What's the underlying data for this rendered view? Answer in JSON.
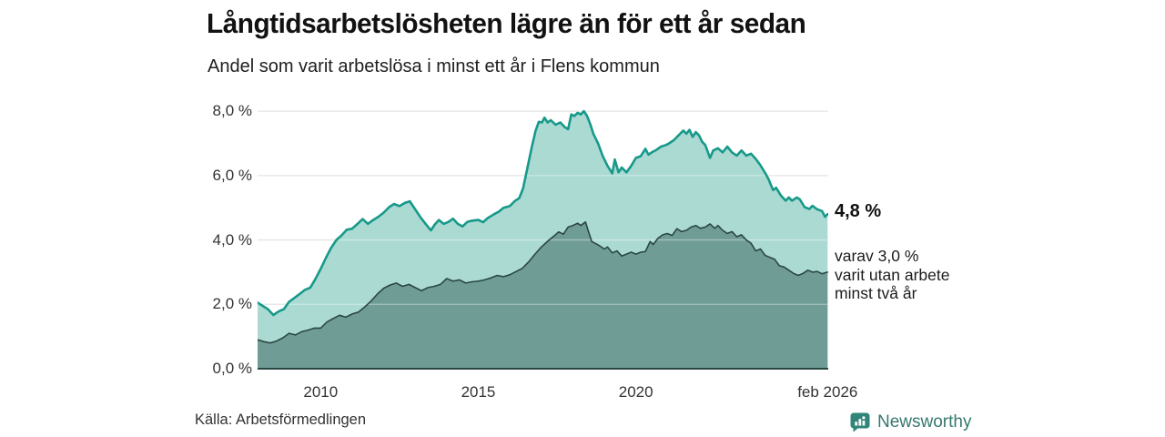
{
  "header": {
    "title": "Långtidsarbetslösheten lägre än för ett år sedan",
    "subtitle": "Andel som varit arbetslösa i minst ett år i Flens kommun"
  },
  "annotations": {
    "end_value": "4,8 %",
    "sub_lines": [
      "varav 3,0 %",
      "varit utan arbete",
      "minst två år"
    ]
  },
  "footer": {
    "source": "Källa: Arbetsförmedlingen",
    "brand": "Newsworthy",
    "brand_color": "#2e8578",
    "brand_text_color": "#37786e"
  },
  "chart_data": {
    "type": "area",
    "title": "Långtidsarbetslösheten lägre än för ett år sedan",
    "subtitle": "Andel som varit arbetslösa i minst ett år i Flens kommun",
    "grid": true,
    "gridline_color": "#d9d9d9",
    "gridline_overlay_color": "rgba(255,255,255,0.38)",
    "baseline_color": "#2b4742",
    "x_range": [
      2008.0,
      2026.1
    ],
    "y_range": [
      0,
      8
    ],
    "x_axis": {
      "ticks": [
        {
          "label": "2010",
          "value": 2010
        },
        {
          "label": "2015",
          "value": 2015
        },
        {
          "label": "2020",
          "value": 2020
        },
        {
          "label": "feb 2026",
          "value": 2026.08
        }
      ]
    },
    "y_axis": {
      "unit": "%",
      "ticks": [
        {
          "label": "0,0 %",
          "value": 0
        },
        {
          "label": "2,0 %",
          "value": 2
        },
        {
          "label": "4,0 %",
          "value": 4
        },
        {
          "label": "6,0 %",
          "value": 6
        },
        {
          "label": "8,0 %",
          "value": 8
        }
      ]
    },
    "series": [
      {
        "name": "arbetslösa minst ett år",
        "end_value": 4.8,
        "line_color": "#17998a",
        "fill_color": "#abdad3",
        "line_width": 2.6,
        "points": [
          [
            2008.0,
            2.05
          ],
          [
            2008.17,
            1.95
          ],
          [
            2008.33,
            1.85
          ],
          [
            2008.5,
            1.67
          ],
          [
            2008.67,
            1.78
          ],
          [
            2008.83,
            1.85
          ],
          [
            2009.0,
            2.08
          ],
          [
            2009.17,
            2.2
          ],
          [
            2009.33,
            2.32
          ],
          [
            2009.5,
            2.45
          ],
          [
            2009.67,
            2.52
          ],
          [
            2009.83,
            2.78
          ],
          [
            2010.0,
            3.1
          ],
          [
            2010.17,
            3.45
          ],
          [
            2010.33,
            3.75
          ],
          [
            2010.5,
            4.0
          ],
          [
            2010.67,
            4.15
          ],
          [
            2010.83,
            4.32
          ],
          [
            2011.0,
            4.35
          ],
          [
            2011.17,
            4.5
          ],
          [
            2011.33,
            4.65
          ],
          [
            2011.5,
            4.5
          ],
          [
            2011.67,
            4.62
          ],
          [
            2011.83,
            4.72
          ],
          [
            2012.0,
            4.85
          ],
          [
            2012.17,
            5.02
          ],
          [
            2012.33,
            5.12
          ],
          [
            2012.5,
            5.05
          ],
          [
            2012.67,
            5.15
          ],
          [
            2012.83,
            5.2
          ],
          [
            2013.0,
            4.95
          ],
          [
            2013.17,
            4.7
          ],
          [
            2013.33,
            4.5
          ],
          [
            2013.5,
            4.3
          ],
          [
            2013.62,
            4.48
          ],
          [
            2013.75,
            4.62
          ],
          [
            2013.9,
            4.5
          ],
          [
            2014.05,
            4.56
          ],
          [
            2014.2,
            4.66
          ],
          [
            2014.35,
            4.5
          ],
          [
            2014.5,
            4.42
          ],
          [
            2014.65,
            4.56
          ],
          [
            2014.8,
            4.6
          ],
          [
            2015.0,
            4.62
          ],
          [
            2015.15,
            4.55
          ],
          [
            2015.3,
            4.68
          ],
          [
            2015.5,
            4.8
          ],
          [
            2015.65,
            4.88
          ],
          [
            2015.8,
            5.0
          ],
          [
            2016.0,
            5.05
          ],
          [
            2016.15,
            5.2
          ],
          [
            2016.3,
            5.3
          ],
          [
            2016.42,
            5.6
          ],
          [
            2016.55,
            6.2
          ],
          [
            2016.7,
            6.9
          ],
          [
            2016.82,
            7.4
          ],
          [
            2016.92,
            7.67
          ],
          [
            2017.02,
            7.65
          ],
          [
            2017.1,
            7.8
          ],
          [
            2017.2,
            7.65
          ],
          [
            2017.3,
            7.72
          ],
          [
            2017.45,
            7.58
          ],
          [
            2017.6,
            7.65
          ],
          [
            2017.75,
            7.5
          ],
          [
            2017.85,
            7.44
          ],
          [
            2017.95,
            7.9
          ],
          [
            2018.05,
            7.85
          ],
          [
            2018.15,
            7.95
          ],
          [
            2018.25,
            7.9
          ],
          [
            2018.35,
            8.0
          ],
          [
            2018.45,
            7.85
          ],
          [
            2018.55,
            7.6
          ],
          [
            2018.65,
            7.3
          ],
          [
            2018.8,
            7.0
          ],
          [
            2018.95,
            6.6
          ],
          [
            2019.1,
            6.3
          ],
          [
            2019.25,
            6.07
          ],
          [
            2019.33,
            6.5
          ],
          [
            2019.45,
            6.1
          ],
          [
            2019.55,
            6.25
          ],
          [
            2019.7,
            6.1
          ],
          [
            2019.85,
            6.3
          ],
          [
            2020.0,
            6.55
          ],
          [
            2020.15,
            6.6
          ],
          [
            2020.3,
            6.83
          ],
          [
            2020.4,
            6.65
          ],
          [
            2020.5,
            6.72
          ],
          [
            2020.65,
            6.8
          ],
          [
            2020.8,
            6.9
          ],
          [
            2020.95,
            6.95
          ],
          [
            2021.05,
            7.0
          ],
          [
            2021.2,
            7.1
          ],
          [
            2021.35,
            7.25
          ],
          [
            2021.5,
            7.4
          ],
          [
            2021.6,
            7.3
          ],
          [
            2021.7,
            7.42
          ],
          [
            2021.8,
            7.2
          ],
          [
            2021.9,
            7.35
          ],
          [
            2022.0,
            7.25
          ],
          [
            2022.1,
            7.05
          ],
          [
            2022.2,
            6.95
          ],
          [
            2022.35,
            6.55
          ],
          [
            2022.45,
            6.78
          ],
          [
            2022.6,
            6.85
          ],
          [
            2022.75,
            6.72
          ],
          [
            2022.9,
            6.9
          ],
          [
            2023.05,
            6.72
          ],
          [
            2023.2,
            6.62
          ],
          [
            2023.35,
            6.78
          ],
          [
            2023.5,
            6.62
          ],
          [
            2023.65,
            6.68
          ],
          [
            2023.8,
            6.52
          ],
          [
            2023.95,
            6.32
          ],
          [
            2024.1,
            6.08
          ],
          [
            2024.2,
            5.9
          ],
          [
            2024.35,
            5.55
          ],
          [
            2024.45,
            5.62
          ],
          [
            2024.6,
            5.38
          ],
          [
            2024.75,
            5.22
          ],
          [
            2024.85,
            5.32
          ],
          [
            2024.95,
            5.22
          ],
          [
            2025.1,
            5.32
          ],
          [
            2025.2,
            5.26
          ],
          [
            2025.35,
            5.02
          ],
          [
            2025.5,
            4.96
          ],
          [
            2025.6,
            5.06
          ],
          [
            2025.75,
            4.95
          ],
          [
            2025.9,
            4.9
          ],
          [
            2026.0,
            4.72
          ],
          [
            2026.08,
            4.8
          ]
        ]
      },
      {
        "name": "varav utan arbete minst två år",
        "end_value": 3.0,
        "line_color": "#2b4742",
        "fill_color": "#6f9d96",
        "line_width": 1.6,
        "points": [
          [
            2008.0,
            0.9
          ],
          [
            2008.2,
            0.84
          ],
          [
            2008.4,
            0.8
          ],
          [
            2008.6,
            0.86
          ],
          [
            2008.8,
            0.96
          ],
          [
            2009.0,
            1.1
          ],
          [
            2009.2,
            1.05
          ],
          [
            2009.4,
            1.15
          ],
          [
            2009.6,
            1.2
          ],
          [
            2009.8,
            1.26
          ],
          [
            2010.0,
            1.26
          ],
          [
            2010.2,
            1.45
          ],
          [
            2010.4,
            1.56
          ],
          [
            2010.6,
            1.66
          ],
          [
            2010.8,
            1.6
          ],
          [
            2011.0,
            1.7
          ],
          [
            2011.2,
            1.76
          ],
          [
            2011.4,
            1.92
          ],
          [
            2011.6,
            2.1
          ],
          [
            2011.8,
            2.32
          ],
          [
            2012.0,
            2.5
          ],
          [
            2012.2,
            2.6
          ],
          [
            2012.4,
            2.66
          ],
          [
            2012.6,
            2.56
          ],
          [
            2012.8,
            2.62
          ],
          [
            2013.0,
            2.52
          ],
          [
            2013.2,
            2.42
          ],
          [
            2013.4,
            2.52
          ],
          [
            2013.6,
            2.56
          ],
          [
            2013.8,
            2.62
          ],
          [
            2014.0,
            2.8
          ],
          [
            2014.2,
            2.72
          ],
          [
            2014.4,
            2.76
          ],
          [
            2014.6,
            2.66
          ],
          [
            2014.8,
            2.7
          ],
          [
            2015.0,
            2.72
          ],
          [
            2015.2,
            2.76
          ],
          [
            2015.4,
            2.82
          ],
          [
            2015.6,
            2.9
          ],
          [
            2015.8,
            2.86
          ],
          [
            2016.0,
            2.92
          ],
          [
            2016.2,
            3.02
          ],
          [
            2016.4,
            3.12
          ],
          [
            2016.6,
            3.32
          ],
          [
            2016.8,
            3.56
          ],
          [
            2017.0,
            3.78
          ],
          [
            2017.2,
            3.96
          ],
          [
            2017.4,
            4.12
          ],
          [
            2017.55,
            4.25
          ],
          [
            2017.7,
            4.18
          ],
          [
            2017.85,
            4.4
          ],
          [
            2018.0,
            4.45
          ],
          [
            2018.15,
            4.52
          ],
          [
            2018.25,
            4.45
          ],
          [
            2018.4,
            4.56
          ],
          [
            2018.5,
            4.25
          ],
          [
            2018.6,
            3.95
          ],
          [
            2018.8,
            3.85
          ],
          [
            2019.0,
            3.72
          ],
          [
            2019.1,
            3.78
          ],
          [
            2019.25,
            3.6
          ],
          [
            2019.4,
            3.66
          ],
          [
            2019.55,
            3.5
          ],
          [
            2019.7,
            3.56
          ],
          [
            2019.85,
            3.62
          ],
          [
            2020.0,
            3.56
          ],
          [
            2020.15,
            3.62
          ],
          [
            2020.3,
            3.64
          ],
          [
            2020.45,
            3.95
          ],
          [
            2020.55,
            3.86
          ],
          [
            2020.7,
            4.05
          ],
          [
            2020.85,
            4.16
          ],
          [
            2021.0,
            4.2
          ],
          [
            2021.15,
            4.14
          ],
          [
            2021.3,
            4.35
          ],
          [
            2021.45,
            4.26
          ],
          [
            2021.6,
            4.3
          ],
          [
            2021.75,
            4.4
          ],
          [
            2021.9,
            4.45
          ],
          [
            2022.05,
            4.36
          ],
          [
            2022.2,
            4.4
          ],
          [
            2022.35,
            4.5
          ],
          [
            2022.5,
            4.36
          ],
          [
            2022.6,
            4.45
          ],
          [
            2022.75,
            4.3
          ],
          [
            2022.9,
            4.2
          ],
          [
            2023.05,
            4.26
          ],
          [
            2023.2,
            4.1
          ],
          [
            2023.35,
            4.16
          ],
          [
            2023.5,
            4.0
          ],
          [
            2023.65,
            3.9
          ],
          [
            2023.8,
            3.66
          ],
          [
            2023.95,
            3.72
          ],
          [
            2024.1,
            3.52
          ],
          [
            2024.25,
            3.46
          ],
          [
            2024.4,
            3.4
          ],
          [
            2024.55,
            3.2
          ],
          [
            2024.7,
            3.16
          ],
          [
            2024.85,
            3.06
          ],
          [
            2025.0,
            2.96
          ],
          [
            2025.15,
            2.9
          ],
          [
            2025.3,
            2.96
          ],
          [
            2025.45,
            3.06
          ],
          [
            2025.6,
            3.0
          ],
          [
            2025.75,
            3.02
          ],
          [
            2025.9,
            2.95
          ],
          [
            2026.08,
            3.0
          ]
        ]
      }
    ]
  }
}
